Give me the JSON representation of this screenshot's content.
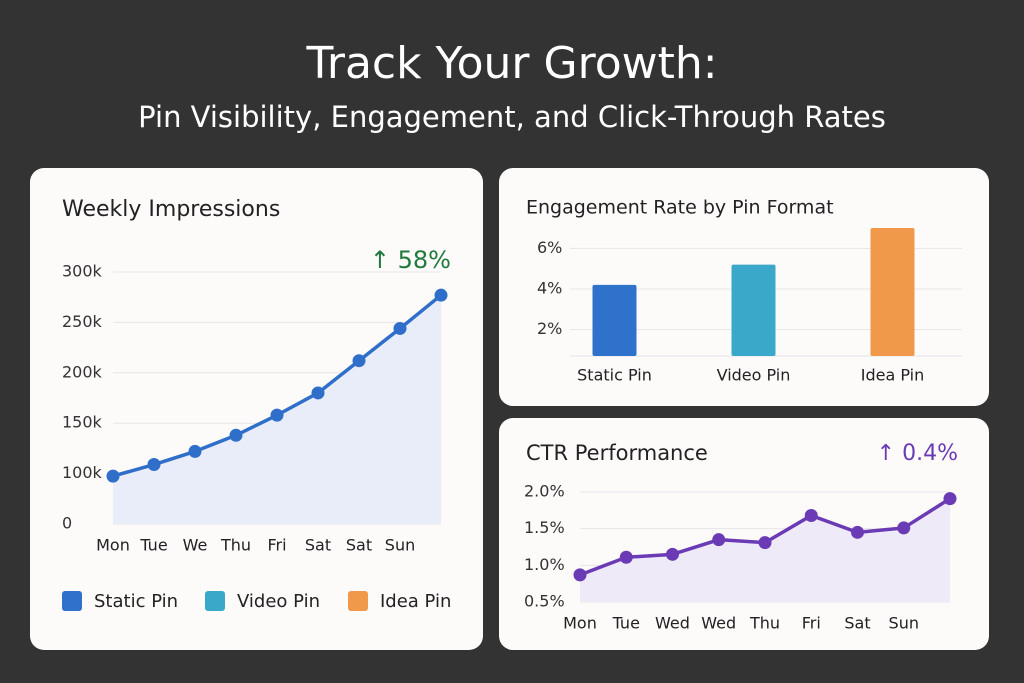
{
  "header": {
    "title": "Track Your Growth:",
    "subtitle": "Pin Visibility, Engagement, and Click-Through Rates"
  },
  "chart_data": [
    {
      "type": "line",
      "title": "Weekly Impressions",
      "annotation": "↑ 58%",
      "categories": [
        "Mon",
        "Tue",
        "We",
        "Thu",
        "Fri",
        "Sat",
        "Sat",
        "Sun",
        null
      ],
      "values": [
        95000,
        109000,
        122000,
        138000,
        158000,
        180000,
        212000,
        244000,
        277000
      ],
      "color": "#2f6fca",
      "fill": "#e9edf9",
      "annotation_color": "#1f7a3c",
      "ylim": [
        0,
        300000
      ],
      "yticks": [
        0,
        {
          "value": 100000,
          "label": "100k"
        },
        {
          "value": 150000,
          "label": "150k"
        },
        {
          "value": 200000,
          "label": "200k"
        },
        {
          "value": 250000,
          "label": "250k"
        },
        {
          "value": 300000,
          "label": "300k"
        }
      ],
      "grid": true
    },
    {
      "type": "bar",
      "title": "Engagement Rate by Pin Format",
      "categories": [
        "Static Pin",
        "Video Pin",
        "Idea Pin"
      ],
      "values": [
        4.2,
        5.2,
        7.0
      ],
      "colors": [
        "#2f72cc",
        "#3aa8c8",
        "#f0994a"
      ],
      "ylim": [
        0.7,
        7
      ],
      "yticks": [
        {
          "value": 2,
          "label": "2%"
        },
        {
          "value": 4,
          "label": "4%"
        },
        {
          "value": 6,
          "label": "6%"
        }
      ],
      "grid": true
    },
    {
      "type": "line",
      "title": "CTR Performance",
      "annotation": "↑ 0.4%",
      "categories": [
        "Mon",
        "Tue",
        "Wed",
        "Wed",
        "Thu",
        "Fri",
        "Sat",
        "Sun",
        null
      ],
      "values": [
        0.87,
        1.11,
        1.15,
        1.35,
        1.31,
        1.68,
        1.45,
        1.51,
        1.91
      ],
      "color": "#6a3bb5",
      "fill": "#efeaf8",
      "annotation_color": "#6a3bb5",
      "ylim": [
        0.5,
        2.0
      ],
      "yticks": [
        {
          "value": 0.5,
          "label": "0.5%"
        },
        {
          "value": 1.0,
          "label": "1.0%"
        },
        {
          "value": 1.5,
          "label": "1.5%"
        },
        {
          "value": 2.0,
          "label": "2.0%"
        }
      ],
      "grid": true
    }
  ],
  "legend": [
    {
      "name": "Static Pin",
      "color": "#2f72cc"
    },
    {
      "name": "Video Pin",
      "color": "#3aa8c8"
    },
    {
      "name": "Idea Pin",
      "color": "#f0994a"
    }
  ]
}
